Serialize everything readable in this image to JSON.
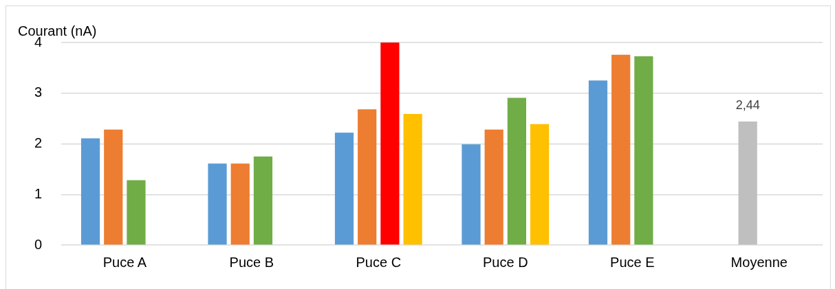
{
  "chart_data": {
    "type": "bar",
    "ylabel": "Courant (nA)",
    "categories": [
      "Puce A",
      "Puce B",
      "Puce C",
      "Puce D",
      "Puce E",
      "Moyenne"
    ],
    "series": [
      {
        "color": "#5b9bd5",
        "values": [
          2.11,
          1.61,
          2.22,
          1.99,
          3.25,
          null
        ]
      },
      {
        "colors": [
          "#ed7d31",
          "#ed7d31",
          "#ed7d31",
          "#ed7d31",
          "#ed7d31",
          "#bfbfbf"
        ],
        "values": [
          2.28,
          1.61,
          2.68,
          2.28,
          3.76,
          2.44
        ],
        "value_labels": [
          null,
          null,
          null,
          null,
          null,
          "2,44"
        ]
      },
      {
        "colors": [
          "#70ad47",
          "#70ad47",
          "#ff0000",
          "#70ad47",
          "#70ad47",
          "#70ad47"
        ],
        "values": [
          1.28,
          1.75,
          4,
          2.91,
          3.73,
          null
        ]
      },
      {
        "color": "#ffc000",
        "values": [
          null,
          null,
          2.59,
          2.39,
          null,
          null
        ]
      }
    ],
    "ylim": [
      0,
      4
    ],
    "yticks": [
      0,
      1,
      2,
      3,
      4
    ],
    "grid": "y",
    "legend": false
  }
}
